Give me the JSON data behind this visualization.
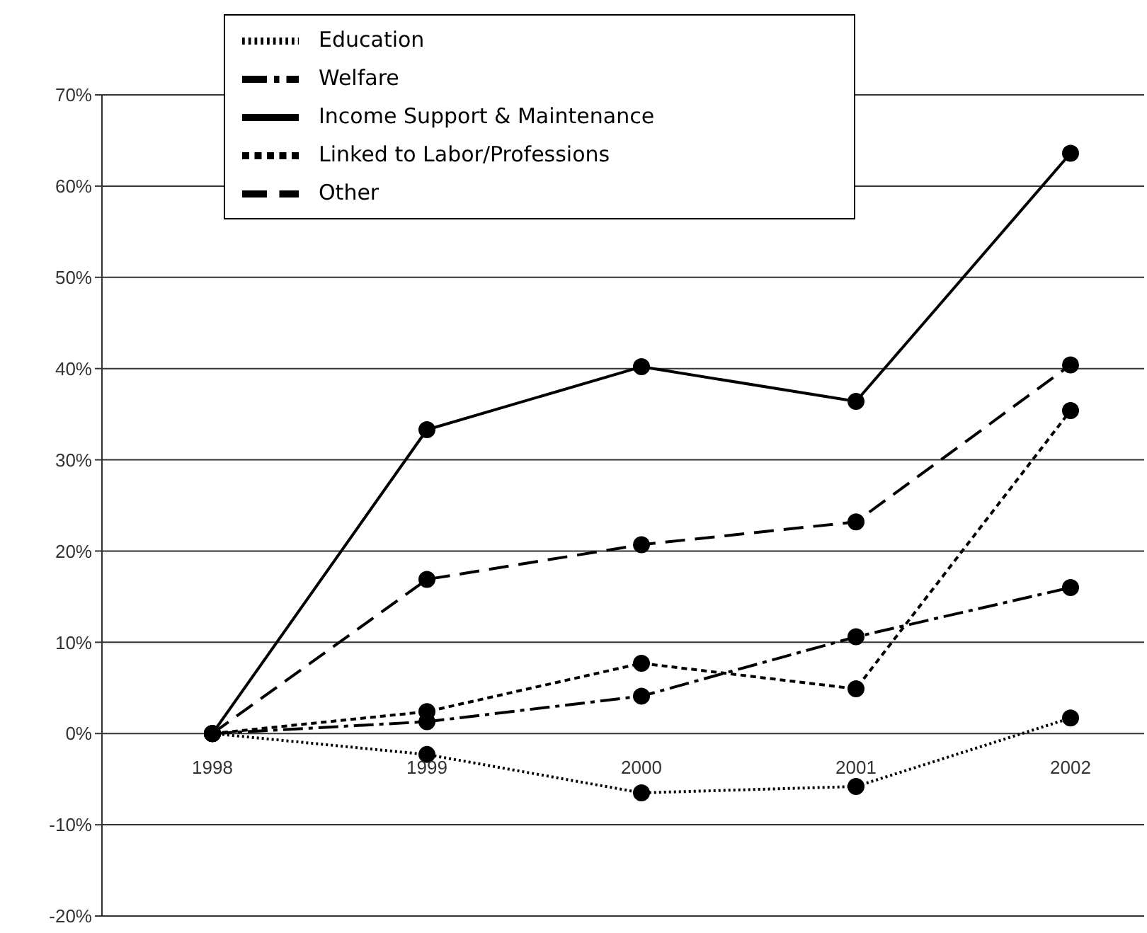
{
  "chart_data": {
    "type": "line",
    "categories": [
      "1998",
      "1999",
      "2000",
      "2001",
      "2002"
    ],
    "series": [
      {
        "name": "Education",
        "color": "#000000",
        "line_style": "dotted",
        "values": [
          0,
          -2.3,
          -6.5,
          -5.8,
          1.7
        ]
      },
      {
        "name": "Welfare",
        "color": "#000000",
        "line_style": "dashdot",
        "values": [
          0,
          1.3,
          4.1,
          10.6,
          16.0
        ]
      },
      {
        "name": "Income Support & Maintenance",
        "color": "#000000",
        "line_style": "solid",
        "values": [
          0,
          33.3,
          40.2,
          36.4,
          63.6
        ]
      },
      {
        "name": "Linked to Labor/Professions",
        "color": "#000000",
        "line_style": "dashed",
        "values": [
          0,
          2.4,
          7.7,
          4.9,
          35.4
        ]
      },
      {
        "name": "Other",
        "color": "#000000",
        "line_style": "longdash",
        "values": [
          0,
          16.9,
          20.7,
          23.2,
          40.4
        ]
      }
    ],
    "ylim": [
      -20,
      70
    ],
    "yticks": [
      {
        "value": -20,
        "label": "-20%"
      },
      {
        "value": -10,
        "label": "-10%"
      },
      {
        "value": 0,
        "label": "0%"
      },
      {
        "value": 10,
        "label": "10%"
      },
      {
        "value": 20,
        "label": "20%"
      },
      {
        "value": 30,
        "label": "30%"
      },
      {
        "value": 40,
        "label": "40%"
      },
      {
        "value": 50,
        "label": "50%"
      },
      {
        "value": 60,
        "label": "60%"
      },
      {
        "value": 70,
        "label": "70%"
      }
    ],
    "grid": "y",
    "legend": "top",
    "marker": "circle"
  }
}
